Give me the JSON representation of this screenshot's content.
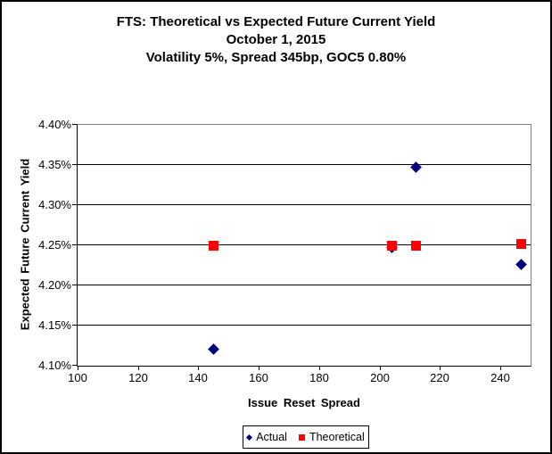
{
  "title": {
    "line1": "FTS: Theoretical vs Expected Future Current Yield",
    "line2": "October 1, 2015",
    "line3": "Volatility 5%, Spread 345bp, GOC5 0.80%"
  },
  "chart_data": {
    "type": "scatter",
    "title": "FTS: Theoretical vs Expected Future Current Yield",
    "subtitle_lines": [
      "October 1, 2015",
      "Volatility 5%, Spread 345bp, GOC5 0.80%"
    ],
    "xlabel": "Issue Reset Spread",
    "ylabel": "Expected Future Current Yield",
    "xlim": [
      100,
      250
    ],
    "ylim": [
      4.1,
      4.4
    ],
    "x_ticks": [
      100,
      120,
      140,
      160,
      180,
      200,
      220,
      240
    ],
    "x_tick_labels": [
      "100",
      "120",
      "140",
      "160",
      "180",
      "200",
      "220",
      "240"
    ],
    "y_ticks": [
      4.4,
      4.35,
      4.3,
      4.25,
      4.2,
      4.15,
      4.1
    ],
    "y_tick_labels": [
      "4.40%",
      "4.35%",
      "4.30%",
      "4.25%",
      "4.20%",
      "4.15%",
      "4.10%"
    ],
    "y_unit": "percent",
    "grid": "horizontal-only",
    "legend_position": "bottom-center",
    "series": [
      {
        "name": "Actual",
        "marker": "diamond",
        "color": "#000080",
        "points": [
          {
            "x": 145,
            "y": 4.121
          },
          {
            "x": 204,
            "y": 4.247
          },
          {
            "x": 212,
            "y": 4.347
          },
          {
            "x": 247,
            "y": 4.226
          }
        ]
      },
      {
        "name": "Theoretical",
        "marker": "square",
        "color": "#FF0000",
        "points": [
          {
            "x": 145,
            "y": 4.25
          },
          {
            "x": 204,
            "y": 4.25
          },
          {
            "x": 212,
            "y": 4.25
          },
          {
            "x": 247,
            "y": 4.252
          }
        ]
      }
    ]
  },
  "colors": {
    "actual": "#000080",
    "theoretical": "#FF0000",
    "gridline": "#000000",
    "axis": "#000000",
    "plot_border": "#808080",
    "background": "#FFFFFF",
    "text": "#000000"
  }
}
